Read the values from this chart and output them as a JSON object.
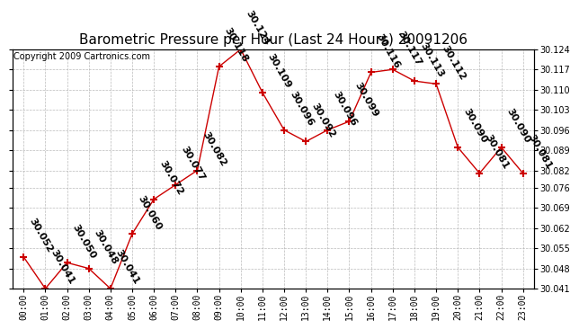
{
  "title": "Barometric Pressure per Hour (Last 24 Hours) 20091206",
  "copyright": "Copyright 2009 Cartronics.com",
  "hours": [
    "00:00",
    "01:00",
    "02:00",
    "03:00",
    "04:00",
    "05:00",
    "06:00",
    "07:00",
    "08:00",
    "09:00",
    "10:00",
    "11:00",
    "12:00",
    "13:00",
    "14:00",
    "15:00",
    "16:00",
    "17:00",
    "18:00",
    "19:00",
    "20:00",
    "21:00",
    "22:00",
    "23:00"
  ],
  "values": [
    30.052,
    30.041,
    30.05,
    30.048,
    30.041,
    30.06,
    30.072,
    30.077,
    30.082,
    30.118,
    30.124,
    30.109,
    30.096,
    30.092,
    30.096,
    30.099,
    30.116,
    30.117,
    30.113,
    30.112,
    30.09,
    30.081,
    30.09,
    30.081
  ],
  "line_color": "#cc0000",
  "marker": "+",
  "marker_size": 6,
  "marker_color": "#cc0000",
  "bg_color": "#ffffff",
  "grid_color": "#aaaaaa",
  "y_min": 30.041,
  "y_max": 30.124,
  "y_ticks": [
    30.041,
    30.048,
    30.055,
    30.062,
    30.069,
    30.076,
    30.082,
    30.089,
    30.096,
    30.103,
    30.11,
    30.117,
    30.124
  ],
  "title_fontsize": 11,
  "tick_fontsize": 7,
  "annotation_fontsize": 8,
  "copyright_fontsize": 7
}
